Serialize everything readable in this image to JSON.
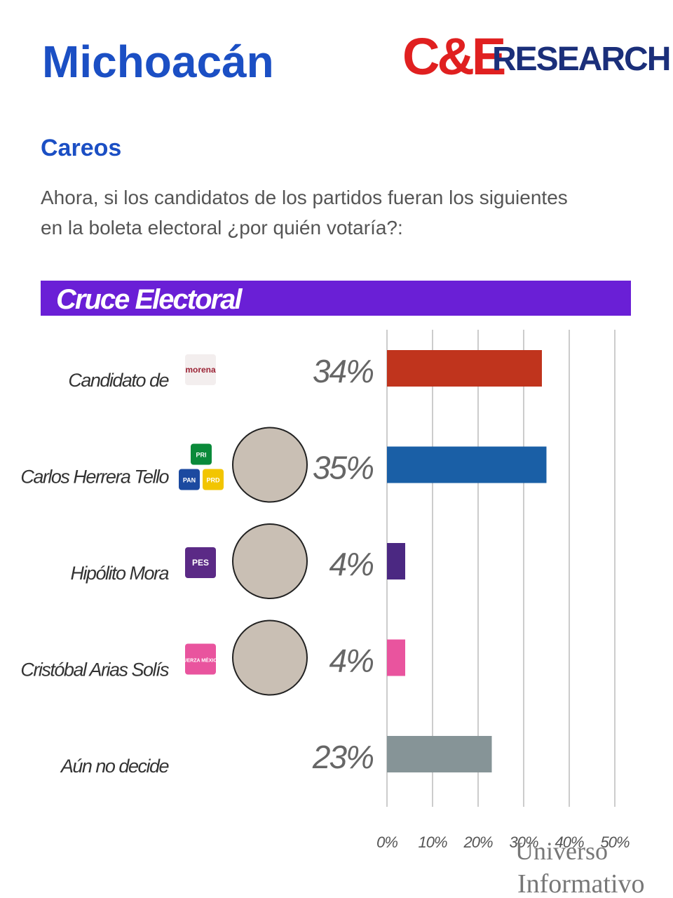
{
  "page": {
    "title": "Michoacán",
    "logo_main": "C&E",
    "logo_sub": "RESEARCH",
    "section": "Careos",
    "question_lines": [
      "Ahora, si los candidatos de los partidos fueran los siguientes",
      "en la boleta electoral ¿por quién votaría?:"
    ],
    "badges": [
      [
        "morena"
      ],
      [
        "PRI",
        "PAN",
        "PRD"
      ],
      [
        "PES"
      ],
      [
        "FUERZA MÉXICO"
      ]
    ],
    "watermark": [
      "Universo",
      "Informativo"
    ]
  },
  "chart_data": {
    "type": "hbar",
    "title": "Cruce Electoral",
    "categories": [
      "Candidato de",
      "Carlos Herrera Tello",
      "Hipólito Mora",
      "Cristóbal Arias Solís",
      "Aún no decide"
    ],
    "values": [
      34,
      35,
      4,
      4,
      23
    ],
    "value_labels": [
      "34%",
      "35%",
      "4%",
      "4%",
      "23%"
    ],
    "colors": [
      "#c0341d",
      "#1a5fa6",
      "#4b2882",
      "#e9549e",
      "#869497"
    ],
    "xlim": [
      0,
      50
    ],
    "xticks": [
      {
        "value": 0,
        "label": "0%"
      },
      {
        "value": 10,
        "label": "10%"
      },
      {
        "value": 20,
        "label": "20%"
      },
      {
        "value": 30,
        "label": "30%"
      },
      {
        "value": 40,
        "label": "40%"
      },
      {
        "value": 50,
        "label": "50%"
      }
    ],
    "grid": true
  }
}
